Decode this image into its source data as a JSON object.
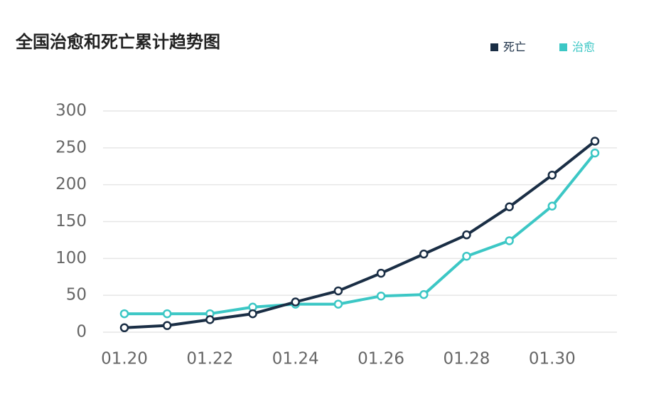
{
  "chart_data": {
    "type": "line",
    "title": "全国治愈和死亡累计趋势图",
    "categories": [
      "01.20",
      null,
      "01.22",
      null,
      "01.24",
      null,
      "01.26",
      null,
      "01.28",
      null,
      "01.30",
      null
    ],
    "series": [
      {
        "name": "死亡",
        "color": "#1a2e45",
        "values": [
          6,
          9,
          17,
          25,
          41,
          56,
          80,
          106,
          132,
          170,
          213,
          259
        ]
      },
      {
        "name": "治愈",
        "color": "#3cc7c5",
        "values": [
          25,
          25,
          25,
          34,
          38,
          38,
          49,
          51,
          103,
          124,
          171,
          243
        ]
      }
    ],
    "ylim": [
      0,
      300
    ],
    "yticks": [
      0,
      50,
      100,
      150,
      200,
      250,
      300
    ],
    "grid": true,
    "legend": "top-right"
  }
}
